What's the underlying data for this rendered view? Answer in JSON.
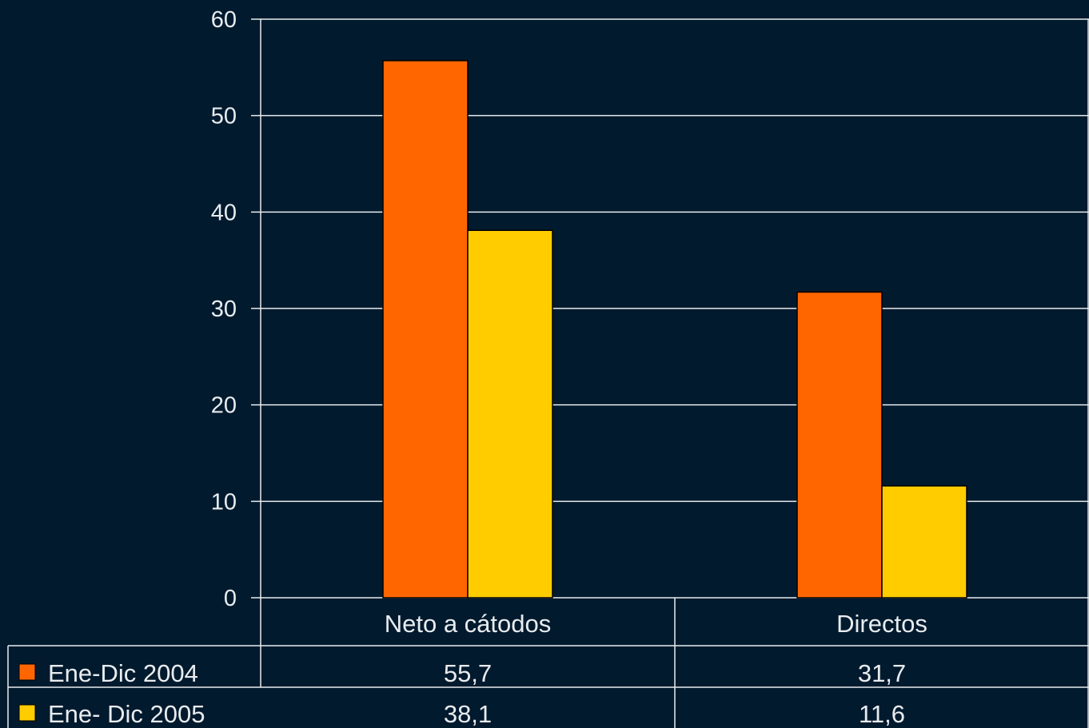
{
  "chart_data": {
    "type": "bar",
    "categories": [
      "Neto a cátodos",
      "Directos"
    ],
    "series": [
      {
        "name": "Ene-Dic 2004",
        "values": [
          55.7,
          31.7
        ],
        "value_labels": [
          "55,7",
          "31,7"
        ],
        "color": "#ff6600"
      },
      {
        "name": "Ene- Dic 2005",
        "values": [
          38.1,
          11.6
        ],
        "value_labels": [
          "38,1",
          "11,6"
        ],
        "color": "#ffcc00"
      }
    ],
    "ylim": [
      0,
      60
    ],
    "yticks": [
      0,
      10,
      20,
      30,
      40,
      50,
      60
    ],
    "grid": true,
    "legend": "data-table-below",
    "title": "",
    "xlabel": "",
    "ylabel": ""
  },
  "colors": {
    "background": "#021a2e",
    "gridline": "#e8ecef",
    "text": "#e8ecef",
    "bar_outline": "#000000"
  }
}
